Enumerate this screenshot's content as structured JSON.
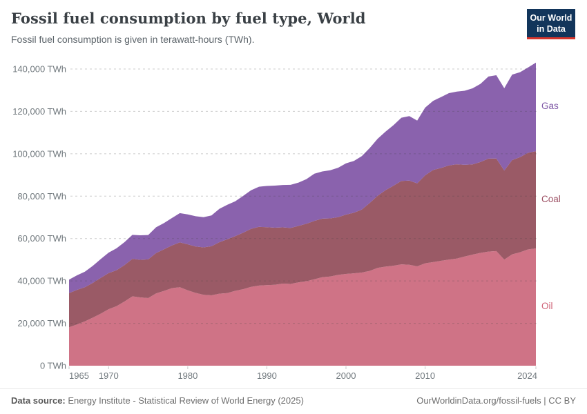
{
  "header": {
    "title": "Fossil fuel consumption by fuel type, World",
    "subtitle": "Fossil fuel consumption is given in terawatt-hours (TWh)."
  },
  "logo": {
    "line1": "Our World",
    "line2": "in Data",
    "bg_color": "#12355b",
    "accent_color": "#d7352c",
    "text_color": "#ffffff"
  },
  "chart_data": {
    "type": "area",
    "stacked": true,
    "title": "Fossil fuel consumption by fuel type, World",
    "unit": "TWh",
    "xlabel": "",
    "ylabel": "TWh",
    "xlim": [
      1965,
      2024
    ],
    "ylim": [
      0,
      140000
    ],
    "grid": "horizontal-dashed",
    "legend_position": "right-edge-labels",
    "x": [
      1965,
      1966,
      1967,
      1968,
      1969,
      1970,
      1971,
      1972,
      1973,
      1974,
      1975,
      1976,
      1977,
      1978,
      1979,
      1980,
      1981,
      1982,
      1983,
      1984,
      1985,
      1986,
      1987,
      1988,
      1989,
      1990,
      1991,
      1992,
      1993,
      1994,
      1995,
      1996,
      1997,
      1998,
      1999,
      2000,
      2001,
      2002,
      2003,
      2004,
      2005,
      2006,
      2007,
      2008,
      2009,
      2010,
      2011,
      2012,
      2013,
      2014,
      2015,
      2016,
      2017,
      2018,
      2019,
      2020,
      2021,
      2022,
      2023,
      2024
    ],
    "series": [
      {
        "name": "Oil",
        "color": "#cf7386",
        "label_color": "#cf6378",
        "values": [
          18146,
          19477,
          20922,
          22656,
          24559,
          26662,
          28099,
          30266,
          32710,
          32246,
          31894,
          34126,
          35285,
          36597,
          37060,
          35582,
          34361,
          33471,
          33225,
          33997,
          34282,
          35310,
          36094,
          37182,
          37799,
          38013,
          38165,
          38748,
          38570,
          39315,
          39894,
          40800,
          41744,
          42055,
          42849,
          43309,
          43597,
          43949,
          44721,
          46163,
          46739,
          47169,
          47819,
          47648,
          46869,
          48305,
          48876,
          49483,
          50052,
          50523,
          51554,
          52417,
          53218,
          53845,
          54075,
          50045,
          52541,
          53535,
          54875,
          55347
        ]
      },
      {
        "name": "Coal",
        "color": "#9a5a66",
        "label_color": "#9c4f63",
        "values": [
          16151,
          16319,
          16100,
          16408,
          16851,
          17071,
          16966,
          17158,
          17712,
          17744,
          18281,
          19022,
          19676,
          20139,
          21138,
          21680,
          21906,
          22357,
          23120,
          24295,
          25403,
          25807,
          26669,
          27417,
          27732,
          27315,
          26937,
          26533,
          26409,
          26651,
          27071,
          27537,
          27630,
          27457,
          27224,
          28008,
          28600,
          29704,
          32071,
          34031,
          36078,
          37762,
          39386,
          39695,
          39167,
          41518,
          43455,
          43800,
          44448,
          44505,
          43226,
          42593,
          42938,
          43869,
          43663,
          42062,
          44473,
          44870,
          45565,
          45871
        ]
      },
      {
        "name": "Gas",
        "color": "#8a62ad",
        "label_color": "#7d56a5",
        "values": [
          6306,
          6858,
          7358,
          8055,
          8895,
          9615,
          10317,
          10839,
          11319,
          11541,
          11495,
          12172,
          12380,
          12929,
          13794,
          14108,
          14255,
          14280,
          14561,
          15744,
          16257,
          16440,
          17361,
          18212,
          18931,
          19485,
          19860,
          19996,
          20364,
          20448,
          21072,
          22267,
          22280,
          22712,
          23328,
          24158,
          24451,
          25214,
          25934,
          26889,
          27614,
          28561,
          29795,
          30434,
          29595,
          31944,
          32606,
          33462,
          34100,
          34337,
          34972,
          35859,
          36846,
          38726,
          39326,
          38807,
          40354,
          40084,
          40230,
          41814
        ]
      }
    ],
    "y_ticks": [
      {
        "value": 0,
        "label": "0 TWh"
      },
      {
        "value": 20000,
        "label": "20,000 TWh"
      },
      {
        "value": 40000,
        "label": "40,000 TWh"
      },
      {
        "value": 60000,
        "label": "60,000 TWh"
      },
      {
        "value": 80000,
        "label": "80,000 TWh"
      },
      {
        "value": 100000,
        "label": "100,000 TWh"
      },
      {
        "value": 120000,
        "label": "120,000 TWh"
      },
      {
        "value": 140000,
        "label": "140,000 TWh"
      }
    ],
    "x_ticks": [
      {
        "value": 1965,
        "label": "1965"
      },
      {
        "value": 1970,
        "label": "1970"
      },
      {
        "value": 1980,
        "label": "1980"
      },
      {
        "value": 1990,
        "label": "1990"
      },
      {
        "value": 2000,
        "label": "2000"
      },
      {
        "value": 2010,
        "label": "2010"
      },
      {
        "value": 2024,
        "label": "2024"
      }
    ]
  },
  "footer": {
    "source_label": "Data source:",
    "source_text": "Energy Institute - Statistical Review of World Energy (2025)",
    "credit": "OurWorldinData.org/fossil-fuels | CC BY"
  }
}
